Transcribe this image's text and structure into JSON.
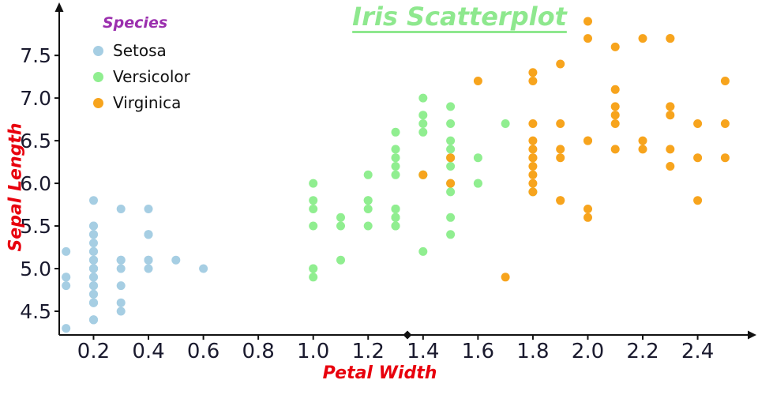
{
  "title": {
    "text": "Iris Scatterplot",
    "color": "#8ee88e"
  },
  "axes": {
    "x_label": "Petal Width",
    "y_label": "Sepal Length",
    "label_color": "#e8000d",
    "tick_color": "#1a1a2e",
    "axis_color": "#111111",
    "x_ticks": [
      {
        "value": 0.2,
        "label": "0.2"
      },
      {
        "value": 0.4,
        "label": "0.4"
      },
      {
        "value": 0.6,
        "label": "0.6"
      },
      {
        "value": 0.8,
        "label": "0.8"
      },
      {
        "value": 1.0,
        "label": "1.0"
      },
      {
        "value": 1.2,
        "label": "1.2"
      },
      {
        "value": 1.4,
        "label": "1.4"
      },
      {
        "value": 1.6,
        "label": "1.6"
      },
      {
        "value": 1.8,
        "label": "1.8"
      },
      {
        "value": 2.0,
        "label": "2.0"
      },
      {
        "value": 2.2,
        "label": "2.2"
      },
      {
        "value": 2.4,
        "label": "2.4"
      }
    ],
    "y_ticks": [
      {
        "value": 4.5,
        "label": "4.5"
      },
      {
        "value": 5.0,
        "label": "5.0"
      },
      {
        "value": 5.5,
        "label": "5.5"
      },
      {
        "value": 6.0,
        "label": "6.0"
      },
      {
        "value": 6.5,
        "label": "6.5"
      },
      {
        "value": 7.0,
        "label": "7.0"
      },
      {
        "value": 7.5,
        "label": "7.5"
      }
    ]
  },
  "legend": {
    "title": "Species",
    "title_color": "#9b2fae",
    "position": "top-left",
    "items": [
      {
        "label": "Setosa",
        "color": "#a6cee3"
      },
      {
        "label": "Versicolor",
        "color": "#90ee90"
      },
      {
        "label": "Virginica",
        "color": "#f7a41d"
      }
    ]
  },
  "chart_data": {
    "type": "scatter",
    "title": "Iris Scatterplot",
    "xlabel": "Petal Width",
    "ylabel": "Sepal Length",
    "xlim": [
      0.075,
      2.66
    ],
    "ylim": [
      4.222,
      8.15
    ],
    "grid": false,
    "legend_position": "top-left",
    "point_radius": 5.5,
    "series": [
      {
        "name": "Setosa",
        "color": "#a6cee3",
        "points": [
          [
            0.2,
            5.1
          ],
          [
            0.2,
            4.9
          ],
          [
            0.2,
            4.7
          ],
          [
            0.2,
            4.6
          ],
          [
            0.2,
            5.0
          ],
          [
            0.4,
            5.4
          ],
          [
            0.3,
            4.6
          ],
          [
            0.2,
            5.0
          ],
          [
            0.2,
            4.4
          ],
          [
            0.1,
            4.9
          ],
          [
            0.2,
            5.4
          ],
          [
            0.2,
            4.8
          ],
          [
            0.1,
            4.8
          ],
          [
            0.1,
            4.3
          ],
          [
            0.2,
            5.8
          ],
          [
            0.4,
            5.7
          ],
          [
            0.4,
            5.4
          ],
          [
            0.3,
            5.1
          ],
          [
            0.3,
            5.7
          ],
          [
            0.3,
            5.1
          ],
          [
            0.2,
            5.4
          ],
          [
            0.4,
            5.1
          ],
          [
            0.2,
            4.6
          ],
          [
            0.5,
            5.1
          ],
          [
            0.2,
            4.8
          ],
          [
            0.2,
            5.0
          ],
          [
            0.4,
            5.0
          ],
          [
            0.2,
            5.2
          ],
          [
            0.2,
            5.2
          ],
          [
            0.2,
            4.7
          ],
          [
            0.2,
            4.8
          ],
          [
            0.4,
            5.4
          ],
          [
            0.1,
            5.2
          ],
          [
            0.2,
            5.5
          ],
          [
            0.2,
            4.9
          ],
          [
            0.2,
            5.0
          ],
          [
            0.2,
            5.5
          ],
          [
            0.1,
            4.9
          ],
          [
            0.2,
            4.4
          ],
          [
            0.2,
            5.1
          ],
          [
            0.3,
            5.0
          ],
          [
            0.3,
            4.5
          ],
          [
            0.2,
            4.4
          ],
          [
            0.6,
            5.0
          ],
          [
            0.4,
            5.1
          ],
          [
            0.3,
            4.8
          ],
          [
            0.2,
            5.1
          ],
          [
            0.2,
            4.6
          ],
          [
            0.2,
            5.3
          ],
          [
            0.2,
            5.0
          ]
        ]
      },
      {
        "name": "Versicolor",
        "color": "#90ee90",
        "points": [
          [
            1.4,
            7.0
          ],
          [
            1.5,
            6.4
          ],
          [
            1.5,
            6.9
          ],
          [
            1.3,
            5.5
          ],
          [
            1.5,
            6.5
          ],
          [
            1.3,
            5.7
          ],
          [
            1.6,
            6.3
          ],
          [
            1.0,
            4.9
          ],
          [
            1.3,
            6.6
          ],
          [
            1.4,
            5.2
          ],
          [
            1.0,
            5.0
          ],
          [
            1.5,
            5.9
          ],
          [
            1.0,
            6.0
          ],
          [
            1.4,
            6.1
          ],
          [
            1.3,
            5.6
          ],
          [
            1.4,
            6.7
          ],
          [
            1.5,
            5.6
          ],
          [
            1.0,
            5.8
          ],
          [
            1.5,
            6.2
          ],
          [
            1.1,
            5.6
          ],
          [
            1.8,
            5.9
          ],
          [
            1.3,
            6.1
          ],
          [
            1.5,
            6.3
          ],
          [
            1.2,
            6.1
          ],
          [
            1.3,
            6.4
          ],
          [
            1.4,
            6.6
          ],
          [
            1.4,
            6.8
          ],
          [
            1.7,
            6.7
          ],
          [
            1.5,
            6.0
          ],
          [
            1.0,
            5.7
          ],
          [
            1.1,
            5.5
          ],
          [
            1.0,
            5.5
          ],
          [
            1.2,
            5.8
          ],
          [
            1.6,
            6.0
          ],
          [
            1.5,
            5.4
          ],
          [
            1.6,
            6.0
          ],
          [
            1.5,
            6.7
          ],
          [
            1.3,
            6.3
          ],
          [
            1.3,
            5.6
          ],
          [
            1.3,
            5.5
          ],
          [
            1.2,
            5.5
          ],
          [
            1.4,
            6.1
          ],
          [
            1.2,
            5.8
          ],
          [
            1.0,
            5.0
          ],
          [
            1.3,
            5.6
          ],
          [
            1.2,
            5.7
          ],
          [
            1.3,
            5.7
          ],
          [
            1.3,
            6.2
          ],
          [
            1.1,
            5.1
          ],
          [
            1.3,
            5.7
          ]
        ]
      },
      {
        "name": "Virginica",
        "color": "#f7a41d",
        "points": [
          [
            2.5,
            6.3
          ],
          [
            1.9,
            5.8
          ],
          [
            2.1,
            7.1
          ],
          [
            1.8,
            6.3
          ],
          [
            2.2,
            6.5
          ],
          [
            2.1,
            7.6
          ],
          [
            1.7,
            4.9
          ],
          [
            1.8,
            7.3
          ],
          [
            1.8,
            6.7
          ],
          [
            2.5,
            7.2
          ],
          [
            2.0,
            6.5
          ],
          [
            1.9,
            6.4
          ],
          [
            2.1,
            6.8
          ],
          [
            2.0,
            5.7
          ],
          [
            2.4,
            5.8
          ],
          [
            2.3,
            6.4
          ],
          [
            1.8,
            6.5
          ],
          [
            2.2,
            7.7
          ],
          [
            2.3,
            7.7
          ],
          [
            1.5,
            6.0
          ],
          [
            2.3,
            6.9
          ],
          [
            2.0,
            5.6
          ],
          [
            2.0,
            7.7
          ],
          [
            1.8,
            6.3
          ],
          [
            2.1,
            6.7
          ],
          [
            1.8,
            7.2
          ],
          [
            1.8,
            6.2
          ],
          [
            1.8,
            6.1
          ],
          [
            2.1,
            6.4
          ],
          [
            1.6,
            7.2
          ],
          [
            1.9,
            7.4
          ],
          [
            2.0,
            7.9
          ],
          [
            2.2,
            6.4
          ],
          [
            1.5,
            6.3
          ],
          [
            1.4,
            6.1
          ],
          [
            2.3,
            7.7
          ],
          [
            2.4,
            6.3
          ],
          [
            1.8,
            6.4
          ],
          [
            1.8,
            6.0
          ],
          [
            2.1,
            6.9
          ],
          [
            2.4,
            6.7
          ],
          [
            2.3,
            6.9
          ],
          [
            1.9,
            5.8
          ],
          [
            2.3,
            6.8
          ],
          [
            1.9,
            6.7
          ],
          [
            2.5,
            6.7
          ],
          [
            1.9,
            6.3
          ],
          [
            2.0,
            6.5
          ],
          [
            2.3,
            6.2
          ],
          [
            1.8,
            5.9
          ]
        ]
      }
    ]
  }
}
